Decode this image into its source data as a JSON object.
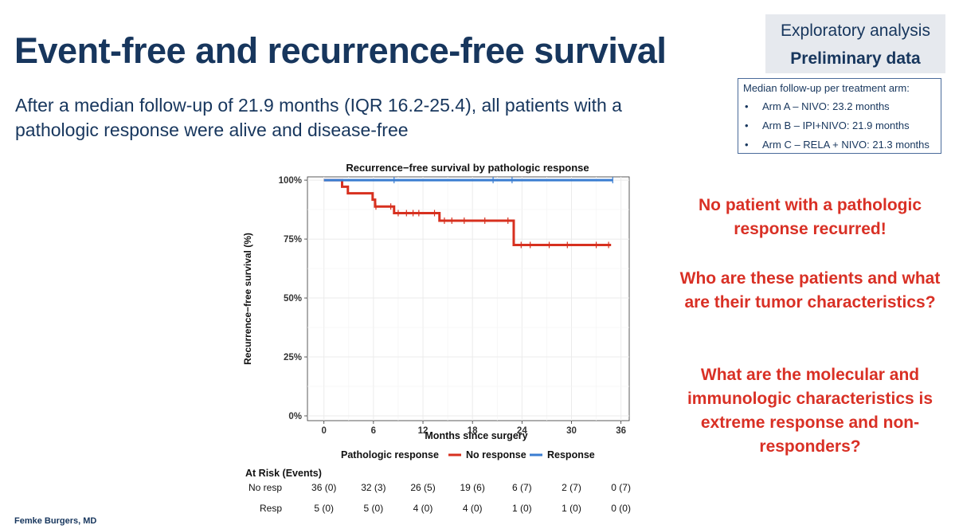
{
  "slide": {
    "title": "Event-free and recurrence-free survival",
    "subtitle": "After a median follow-up of 21.9 months (IQR 16.2-25.4), all patients with a pathologic response were alive and disease-free",
    "footer": "Femke Burgers, MD"
  },
  "badge": {
    "line1": "Exploratory analysis",
    "line2": "Preliminary data"
  },
  "followup": {
    "heading": "Median follow-up per treatment arm:",
    "items": [
      "Arm A – NIVO: 23.2 months",
      "Arm B – IPI+NIVO: 21.9 months",
      "Arm C – RELA + NIVO: 21.3 months"
    ]
  },
  "callouts": [
    "No patient with a pathologic response recurred!",
    "Who are these patients and what are their tumor characteristics?",
    "What are the molecular and immunologic characteristics is extreme response and non-responders?"
  ],
  "chart_data": {
    "type": "line",
    "step": true,
    "title": "Recurrence−free survival by pathologic response",
    "xlabel": "Months since surgery",
    "ylabel": "Recurrence−free survival (%)",
    "xlim": [
      -2,
      37
    ],
    "ylim": [
      0,
      100
    ],
    "x_ticks": [
      0,
      6,
      12,
      18,
      24,
      30,
      36
    ],
    "y_ticks": [
      0,
      25,
      50,
      75,
      100
    ],
    "y_tick_labels": [
      "0%",
      "25%",
      "50%",
      "75%",
      "100%"
    ],
    "grid": true,
    "legend": {
      "title": "Pathologic response",
      "placement": "bottom"
    },
    "series": [
      {
        "name": "No response",
        "color": "#d7301f",
        "steps": [
          [
            0,
            100
          ],
          [
            2.2,
            97.2
          ],
          [
            2.9,
            94.4
          ],
          [
            5.9,
            91.7
          ],
          [
            6.2,
            88.8
          ],
          [
            8.5,
            86.0
          ],
          [
            14.0,
            82.8
          ],
          [
            23.0,
            72.5
          ],
          [
            34.8,
            72.5
          ]
        ],
        "censored": [
          [
            6.3,
            88.8
          ],
          [
            8.1,
            88.8
          ],
          [
            9.0,
            86.0
          ],
          [
            10.0,
            86.0
          ],
          [
            10.8,
            86.0
          ],
          [
            11.5,
            86.0
          ],
          [
            13.4,
            86.0
          ],
          [
            14.6,
            82.8
          ],
          [
            15.5,
            82.8
          ],
          [
            17.0,
            82.8
          ],
          [
            19.5,
            82.8
          ],
          [
            22.3,
            82.8
          ],
          [
            23.9,
            72.5
          ],
          [
            25.0,
            72.5
          ],
          [
            27.3,
            72.5
          ],
          [
            29.5,
            72.5
          ],
          [
            33.0,
            72.5
          ],
          [
            34.5,
            72.5
          ]
        ]
      },
      {
        "name": "Response",
        "color": "#3a7dd1",
        "steps": [
          [
            0,
            100
          ],
          [
            35,
            100
          ]
        ],
        "censored": [
          [
            8.5,
            100
          ],
          [
            20.5,
            100
          ],
          [
            22.8,
            100
          ],
          [
            35,
            100
          ]
        ]
      }
    ],
    "risk_table": {
      "title": "At Risk (Events)",
      "times": [
        0,
        6,
        12,
        18,
        24,
        30,
        36
      ],
      "rows": [
        {
          "label": "No resp",
          "values": [
            "36 (0)",
            "32 (3)",
            "26 (5)",
            "19 (6)",
            "6 (7)",
            "2 (7)",
            "0 (7)"
          ]
        },
        {
          "label": "Resp",
          "values": [
            "5 (0)",
            "5 (0)",
            "4 (0)",
            "4 (0)",
            "1 (0)",
            "1 (0)",
            "0 (0)"
          ]
        }
      ]
    }
  }
}
